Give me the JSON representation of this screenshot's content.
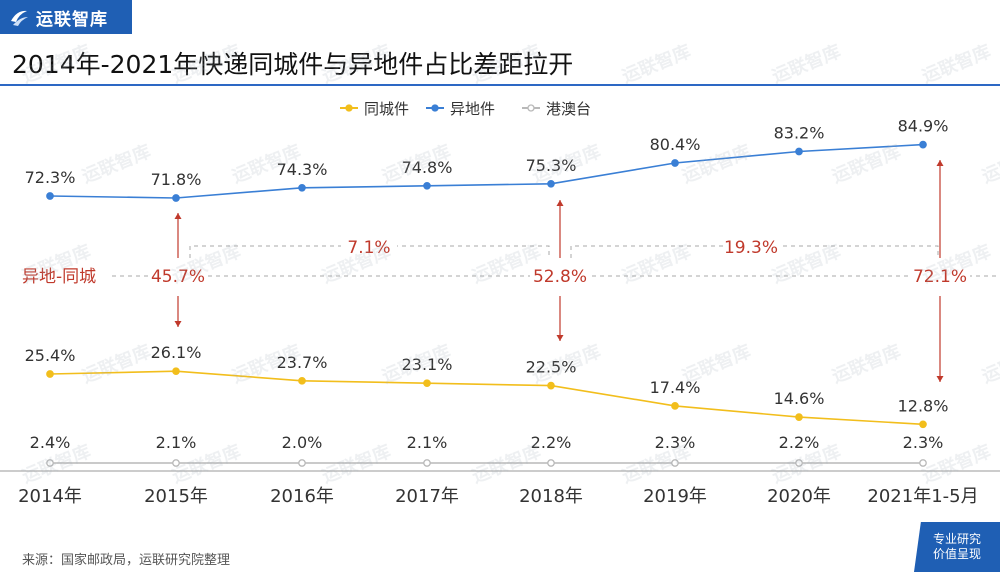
{
  "brand": {
    "logo_text": "运联智库",
    "watermark_text": "运联智库"
  },
  "title": "2014年-2021年快递同城件与异地件占比差距拉开",
  "source": "来源：国家邮政局，运联研究院整理",
  "badge": {
    "line1": "专业研究",
    "line2": "价值呈现"
  },
  "colors": {
    "brand": "#1f5fb4",
    "same_city": "#f2be1c",
    "other_city": "#3a7fd5",
    "hk_macau_tw": "#b9b9b9",
    "gap": "#c0392b"
  },
  "chart_data": {
    "type": "line",
    "categories": [
      "2014年",
      "2015年",
      "2016年",
      "2017年",
      "2018年",
      "2019年",
      "2020年",
      "2021年1-5月"
    ],
    "series": [
      {
        "name": "同城件",
        "values": [
          25.4,
          26.1,
          23.7,
          23.1,
          22.5,
          17.4,
          14.6,
          12.8
        ],
        "labels": [
          "25.4%",
          "26.1%",
          "23.7%",
          "23.1%",
          "22.5%",
          "17.4%",
          "14.6%",
          "12.8%"
        ]
      },
      {
        "name": "异地件",
        "values": [
          72.3,
          71.8,
          74.3,
          74.8,
          75.3,
          80.4,
          83.2,
          84.9
        ],
        "labels": [
          "72.3%",
          "71.8%",
          "74.3%",
          "74.8%",
          "75.3%",
          "80.4%",
          "83.2%",
          "84.9%"
        ]
      },
      {
        "name": "港澳台",
        "values": [
          2.4,
          2.1,
          2.0,
          2.1,
          2.2,
          2.3,
          2.2,
          2.3
        ],
        "labels": [
          "2.4%",
          "2.1%",
          "2.0%",
          "2.1%",
          "2.2%",
          "2.3%",
          "2.2%",
          "2.3%"
        ]
      }
    ],
    "legend_position": "top-center",
    "annotations": {
      "gap_label": "异地-同城",
      "gaps": [
        {
          "category": "2015年",
          "value": 45.7,
          "label": "45.7%"
        },
        {
          "category": "2018年",
          "value": 52.8,
          "label": "52.8%"
        },
        {
          "category": "2021年1-5月",
          "value": 72.1,
          "label": "72.1%"
        }
      ],
      "increases": [
        {
          "from": "2015年",
          "to": "2018年",
          "value": 7.1,
          "label": "7.1%"
        },
        {
          "from": "2018年",
          "to": "2021年1-5月",
          "value": 19.3,
          "label": "19.3%"
        }
      ]
    }
  }
}
